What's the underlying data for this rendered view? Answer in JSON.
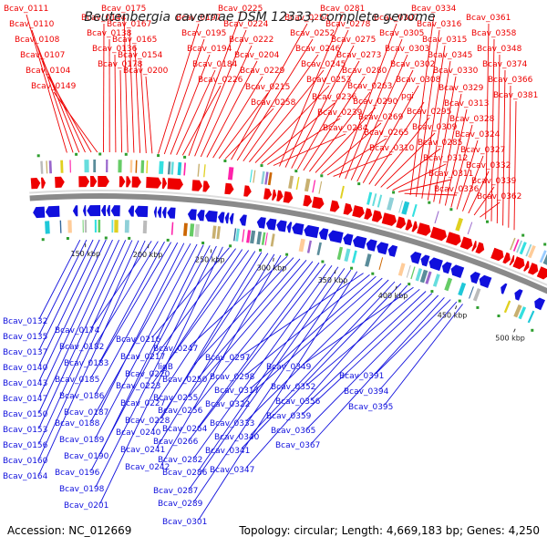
{
  "title": "Beutenbergia cavernae DSM 12333, complete genome",
  "footer": {
    "accession": "Accession: NC_012669",
    "summary": "Topology: circular; Length: 4,669,183 bp; Genes: 4,250"
  },
  "colors": {
    "forward": "#ee0000",
    "reverse": "#1010dd",
    "backbone": "#8a8a8a",
    "rna": "#2e9e2e"
  },
  "ticks": [
    "150 kbp",
    "200 kbp",
    "250 kbp",
    "300 kbp",
    "350 kbp",
    "400 kbp",
    "450 kbp",
    "500 kbp"
  ],
  "forward_labels": [
    "Bcav_0111",
    "Bcav_0110",
    "Bcav_0108",
    "Bcav_0107",
    "Bcav_0104",
    "Bcav_0149",
    "Bcav_0144",
    "Bcav_0138",
    "Bcav_0136",
    "Bcav_0178",
    "Bcav_0175",
    "Bcav_0167",
    "Bcav_0165",
    "Bcav_0154",
    "Bcav_0200",
    "Bcav_0197",
    "Bcav_0195",
    "Bcav_0194",
    "Bcav_0184",
    "Bcav_0226",
    "Bcav_0225",
    "Bcav_0224",
    "Bcav_0222",
    "Bcav_0204",
    "Bcav_0229",
    "Bcav_0215",
    "Bcav_0258",
    "Bcav_0254",
    "Bcav_0252",
    "Bcav_0246",
    "Bcav_0245",
    "Bcav_0253",
    "Bcav_0236",
    "Bcav_0239",
    "Bcav_0284",
    "Bcav_0281",
    "Bcav_0278",
    "Bcav_0275",
    "Bcav_0273",
    "Bcav_0280",
    "Bcav_0263",
    "Bcav_0290",
    "Bcav_0269",
    "Bcav_0265",
    "Bcav_0310",
    "Bcav_0307",
    "Bcav_0305",
    "Bcav_0303",
    "Bcav_0302",
    "Bcav_0308",
    "pgi",
    "Bcav_0295",
    "Bcav_0309",
    "Bcav_0285",
    "Bcav_0312",
    "Bcav_0311",
    "Bcav_0336",
    "Bcav_0334",
    "Bcav_0316",
    "Bcav_0315",
    "Bcav_0345",
    "Bcav_0330",
    "Bcav_0329",
    "Bcav_0313",
    "Bcav_0328",
    "Bcav_0324",
    "Bcav_0327",
    "Bcav_0332",
    "Bcav_0339",
    "Bcav_0362",
    "Bcav_0361",
    "Bcav_0358",
    "Bcav_0348",
    "Bcav_0374",
    "Bcav_0366",
    "Bcav_0381"
  ],
  "reverse_labels": [
    "Bcav_0132",
    "Bcav_0135",
    "Bcav_0137",
    "Bcav_0140",
    "Bcav_0143",
    "Bcav_0147",
    "Bcav_0150",
    "Bcav_0153",
    "Bcav_0156",
    "Bcav_0160",
    "Bcav_0164",
    "Bcav_0174",
    "Bcav_0182",
    "Bcav_0183",
    "Bcav_0185",
    "Bcav_0186",
    "Bcav_0187",
    "Bcav_0188",
    "Bcav_0189",
    "Bcav_0190",
    "Bcav_0196",
    "Bcav_0198",
    "Bcav_0201",
    "Bcav_0216",
    "Bcav_0217",
    "Bcav_0220",
    "Bcav_0223",
    "Bcav_0227",
    "Bcav_0228",
    "Bcav_0240",
    "Bcav_0241",
    "Bcav_0242",
    "Bcav_0247",
    "ligB",
    "Bcav_0250",
    "Bcav_0255",
    "Bcav_0256",
    "Bcav_0264",
    "Bcav_0266",
    "Bcav_0282",
    "Bcav_0286",
    "Bcav_0287",
    "Bcav_0289",
    "Bcav_0301",
    "Bcav_0297",
    "Bcav_0298",
    "Bcav_0317",
    "Bcav_0322",
    "Bcav_0333",
    "Bcav_0340",
    "Bcav_0341",
    "Bcav_0347",
    "Bcav_0349",
    "Bcav_0352",
    "Bcav_0356",
    "Bcav_0359",
    "Bcav_0365",
    "Bcav_0367",
    "Bcav_0391",
    "Bcav_0394",
    "Bcav_0395"
  ]
}
